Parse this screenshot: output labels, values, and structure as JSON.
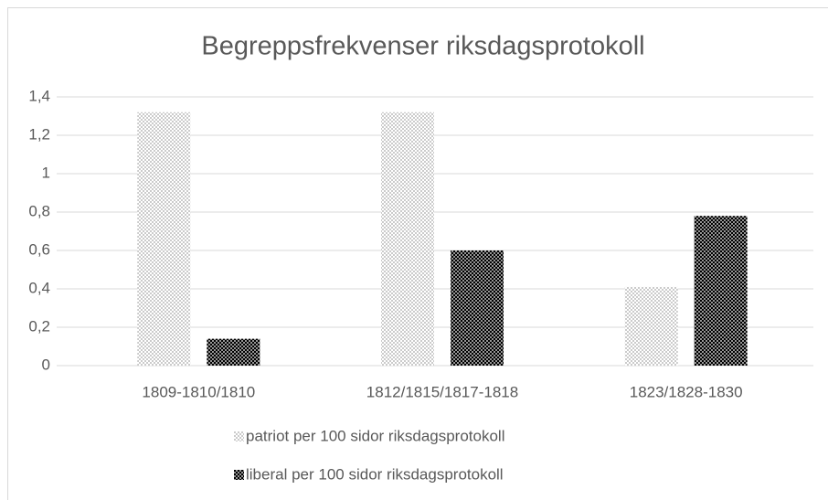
{
  "chart_data": {
    "type": "bar",
    "title": "Begreppsfrekvenser riksdagsprotokoll",
    "categories": [
      "1809-1810/1810",
      "1812/1815/1817-1818",
      "1823/1828-1830"
    ],
    "series": [
      {
        "name": "patriot per 100 sidor riksdagsprotokoll",
        "color": "#a6a6a6",
        "values": [
          1.32,
          1.32,
          0.41
        ]
      },
      {
        "name": "liberal per 100 sidor riksdagsprotokoll",
        "color": "#000000",
        "values": [
          0.14,
          0.6,
          0.78
        ]
      }
    ],
    "ylim": [
      0,
      1.4
    ],
    "yticks": [
      0,
      {
        "value": 0.2,
        "label": "0,2"
      },
      {
        "value": 0.4,
        "label": "0,4"
      },
      {
        "value": 0.6,
        "label": "0,6"
      },
      {
        "value": 0.8,
        "label": "0,8"
      },
      1,
      {
        "value": 1.2,
        "label": "1,2"
      },
      {
        "value": 1.4,
        "label": "1,4"
      }
    ],
    "grid": true,
    "legend": "bottom"
  }
}
